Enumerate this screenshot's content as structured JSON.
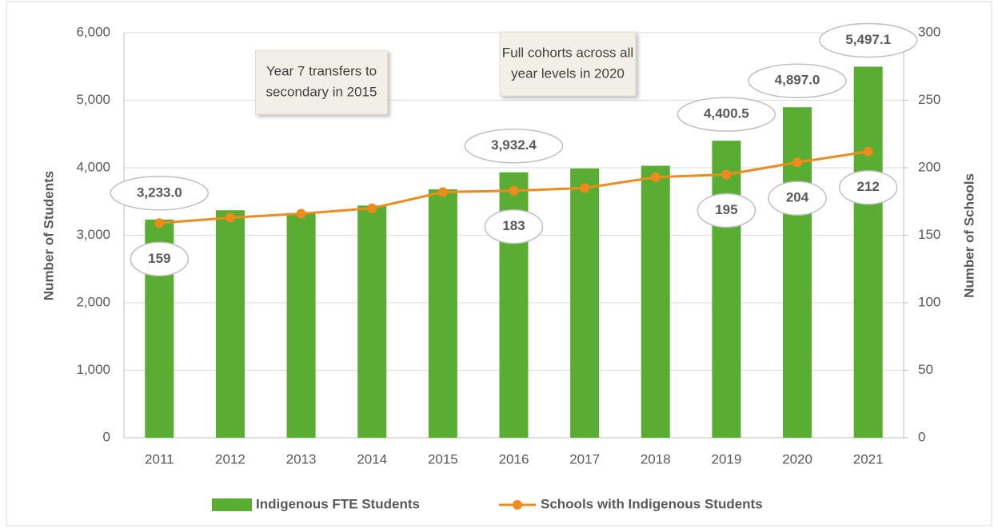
{
  "chart_data": {
    "type": "bar_line",
    "categories": [
      "2011",
      "2012",
      "2013",
      "2014",
      "2015",
      "2016",
      "2017",
      "2018",
      "2019",
      "2020",
      "2021"
    ],
    "series": [
      {
        "name": "Indigenous FTE Students",
        "type": "bar",
        "color": "#58ad32",
        "axis": "y",
        "values": [
          3233.0,
          3370,
          3330,
          3440,
          3680,
          3932.4,
          3990,
          4030,
          4400.5,
          4897.0,
          5497.1
        ],
        "value_labels": [
          "3,233.0",
          null,
          null,
          null,
          null,
          "3,932.4",
          null,
          null,
          "4,400.5",
          "4,897.0",
          "5,497.1"
        ]
      },
      {
        "name": "Schools with Indigenous Students",
        "type": "line",
        "color": "#ed8b1c",
        "axis": "y2",
        "values": [
          159,
          163,
          166,
          170,
          182,
          183,
          185,
          193,
          195,
          204,
          212
        ],
        "value_labels": [
          "159",
          null,
          null,
          null,
          null,
          "183",
          null,
          null,
          "195",
          "204",
          "212"
        ]
      }
    ],
    "ylabel": "Number of Students",
    "y2label": "Number of Schools",
    "ylim": [
      0,
      6000
    ],
    "yticks": [
      0,
      {
        "value": 1000,
        "label": "1,000"
      },
      {
        "value": 2000,
        "label": "2,000"
      },
      {
        "value": 3000,
        "label": "3,000"
      },
      {
        "value": 4000,
        "label": "4,000"
      },
      {
        "value": 5000,
        "label": "5,000"
      },
      {
        "value": 6000,
        "label": "6,000"
      }
    ],
    "y2lim": [
      0,
      300
    ],
    "y2ticks": [
      0,
      50,
      100,
      150,
      200,
      250,
      300
    ],
    "grid": true,
    "legend": "bottom",
    "annotations": [
      {
        "lines": [
          "Year 7 transfers to",
          "secondary in 2015"
        ]
      },
      {
        "lines": [
          "Full cohorts across all",
          "year levels in 2020"
        ]
      }
    ]
  }
}
